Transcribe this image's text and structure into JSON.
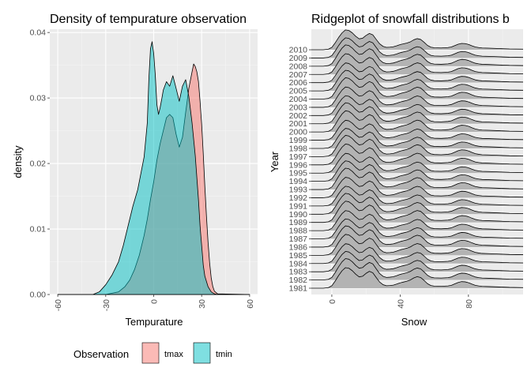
{
  "chart_data": [
    {
      "type": "area",
      "title": "Density of tempurature observation",
      "xlabel": "Tempurature",
      "ylabel": "density",
      "xlim": [
        -65,
        65
      ],
      "ylim": [
        0,
        0.0405
      ],
      "x_ticks": [
        -60,
        -30,
        0,
        30,
        60
      ],
      "x_tick_labels": [
        "-60",
        "-30",
        "0",
        "30",
        "60"
      ],
      "y_ticks": [
        0,
        0.01,
        0.02,
        0.03,
        0.04
      ],
      "y_tick_labels": [
        "0.00",
        "0.01",
        "0.02",
        "0.03",
        "0.04"
      ],
      "grid": true,
      "legend": {
        "title": "Observation",
        "position": "bottom",
        "entries": [
          {
            "label": "tmax",
            "color": "#F8766D"
          },
          {
            "label": "tmin",
            "color": "#00BFC4"
          }
        ]
      },
      "series": [
        {
          "name": "tmax",
          "color": "#F8766D",
          "x": [
            -60,
            -30,
            -22,
            -18,
            -15,
            -12,
            -9,
            -6,
            -4,
            -2,
            0,
            2,
            4,
            6,
            8,
            10,
            12,
            14,
            16,
            18,
            20,
            22,
            24,
            25,
            26,
            27,
            28,
            29,
            30,
            31,
            32,
            33,
            34,
            35,
            36,
            37,
            38,
            40,
            60
          ],
          "y": [
            0,
            0,
            0.0004,
            0.0012,
            0.0022,
            0.0038,
            0.006,
            0.009,
            0.0115,
            0.0145,
            0.0172,
            0.0205,
            0.023,
            0.025,
            0.027,
            0.0275,
            0.027,
            0.0245,
            0.0225,
            0.024,
            0.0278,
            0.0315,
            0.034,
            0.0352,
            0.0348,
            0.034,
            0.0325,
            0.0295,
            0.026,
            0.0215,
            0.0165,
            0.012,
            0.008,
            0.0048,
            0.0025,
            0.0012,
            0.0005,
            0.0001,
            0
          ]
        },
        {
          "name": "tmin",
          "color": "#00BFC4",
          "x": [
            -60,
            -38,
            -34,
            -30,
            -26,
            -22,
            -19,
            -16,
            -13,
            -10,
            -8,
            -6,
            -4,
            -3,
            -2,
            -1,
            0,
            1,
            2,
            3,
            4,
            5,
            6,
            8,
            10,
            12,
            14,
            16,
            18,
            20,
            22,
            24,
            26,
            28,
            29,
            30,
            31,
            32,
            34,
            36,
            38,
            40,
            60
          ],
          "y": [
            0,
            0,
            0.0004,
            0.0015,
            0.003,
            0.005,
            0.0075,
            0.0105,
            0.0135,
            0.016,
            0.0185,
            0.021,
            0.0262,
            0.033,
            0.0375,
            0.0386,
            0.0368,
            0.0335,
            0.029,
            0.0275,
            0.0285,
            0.0298,
            0.0312,
            0.0325,
            0.0318,
            0.0334,
            0.0315,
            0.0295,
            0.0318,
            0.0328,
            0.0302,
            0.0262,
            0.0212,
            0.0145,
            0.0105,
            0.0075,
            0.0045,
            0.0028,
            0.0012,
            0.0004,
            0.0001,
            0,
            0
          ]
        }
      ]
    },
    {
      "type": "area",
      "title": "Ridgeplot of snowfall distributions b",
      "xlabel": "Snow",
      "ylabel": "Year",
      "xlim": [
        -12,
        112
      ],
      "x_ticks": [
        0,
        40,
        80
      ],
      "x_tick_labels": [
        "0",
        "40",
        "80"
      ],
      "grid": true,
      "fill_color": "#B3B3B3",
      "years": [
        "1981",
        "1982",
        "1983",
        "1984",
        "1985",
        "1986",
        "1987",
        "1988",
        "1989",
        "1990",
        "1991",
        "1992",
        "1993",
        "1994",
        "1995",
        "1996",
        "1997",
        "1998",
        "1999",
        "2000",
        "2001",
        "2002",
        "2003",
        "2004",
        "2005",
        "2006",
        "2007",
        "2008",
        "2009",
        "2010"
      ],
      "profile": {
        "x": [
          -12,
          -5,
          -2,
          0,
          2,
          4,
          6,
          8,
          10,
          12,
          14,
          16,
          18,
          20,
          22,
          24,
          26,
          28,
          30,
          32,
          34,
          36,
          38,
          40,
          42,
          44,
          46,
          48,
          50,
          52,
          54,
          56,
          58,
          60,
          64,
          68,
          70,
          72,
          74,
          76,
          78,
          80,
          82,
          84,
          86,
          88,
          92,
          98,
          104,
          112
        ],
        "y": [
          0,
          0,
          0.03,
          0.12,
          0.35,
          0.62,
          0.85,
          1.0,
          0.97,
          0.85,
          0.68,
          0.55,
          0.58,
          0.72,
          0.82,
          0.75,
          0.52,
          0.3,
          0.17,
          0.12,
          0.13,
          0.15,
          0.2,
          0.26,
          0.3,
          0.34,
          0.4,
          0.5,
          0.56,
          0.52,
          0.38,
          0.22,
          0.13,
          0.1,
          0.09,
          0.11,
          0.14,
          0.21,
          0.28,
          0.32,
          0.31,
          0.27,
          0.2,
          0.14,
          0.11,
          0.09,
          0.08,
          0.06,
          0.04,
          0.03
        ]
      },
      "ridge_height_years": 2.5
    }
  ]
}
